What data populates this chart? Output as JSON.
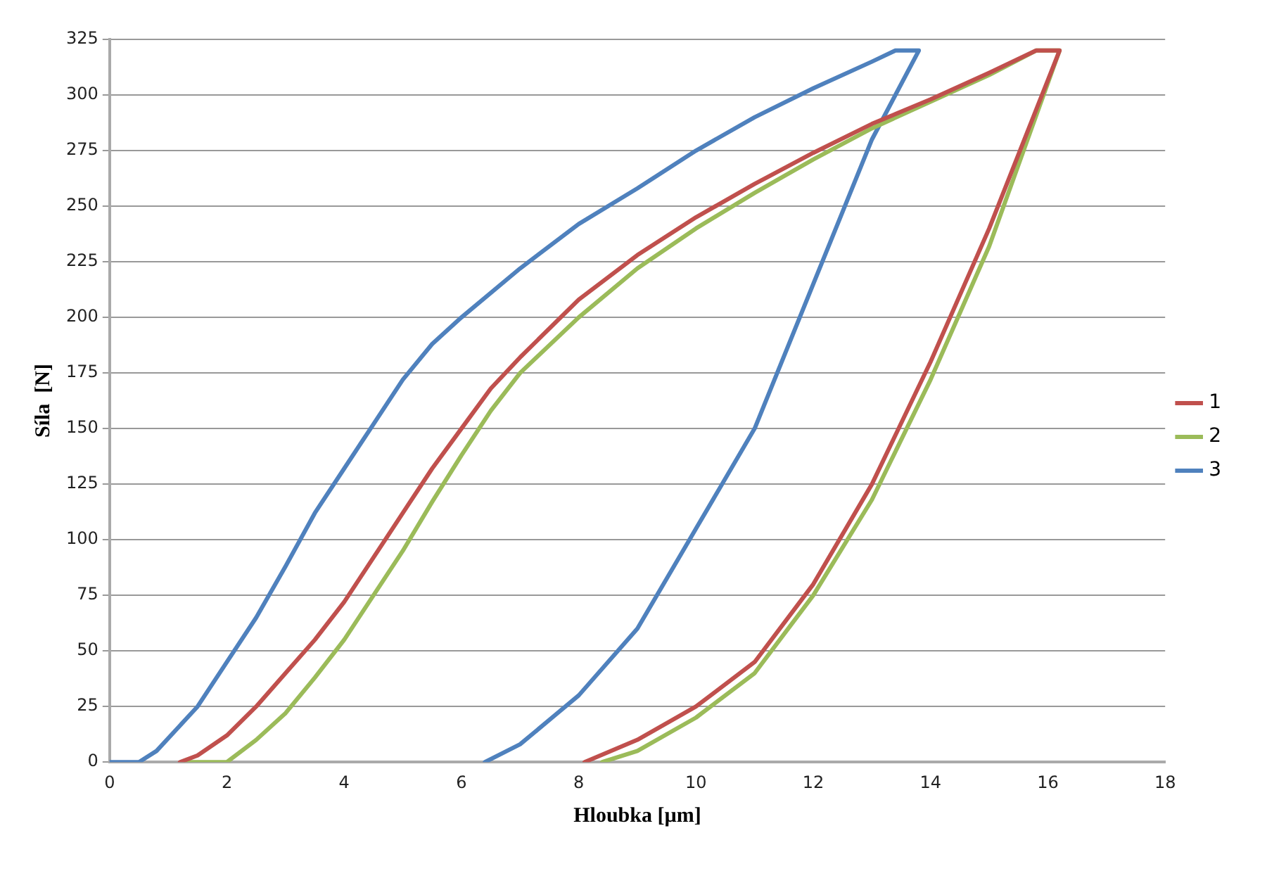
{
  "chart_data": {
    "type": "line",
    "xlabel": "Hloubka [µm]",
    "ylabel": "Síla  [N]",
    "xlim": [
      0,
      18
    ],
    "xticks": [
      0,
      2,
      4,
      6,
      8,
      10,
      12,
      14,
      16,
      18
    ],
    "ylim": [
      0,
      325
    ],
    "yticks": [
      0,
      25,
      50,
      75,
      100,
      125,
      150,
      175,
      200,
      225,
      250,
      275,
      300,
      325
    ],
    "grid": "y",
    "legend": "right",
    "marker": "none",
    "line_style": "solid",
    "series": [
      {
        "name": "1",
        "color": "#c0504d",
        "x": [
          1.2,
          1.5,
          2,
          2.5,
          3,
          3.5,
          4,
          4.5,
          5,
          5.5,
          6,
          6.5,
          7,
          8,
          9,
          10,
          11,
          12,
          13,
          14,
          15,
          15.8,
          16.2,
          15,
          14,
          13,
          12,
          11,
          10,
          9,
          8.1
        ],
        "values": [
          0,
          3,
          12,
          25,
          40,
          55,
          72,
          92,
          112,
          132,
          150,
          168,
          182,
          208,
          228,
          245,
          260,
          274,
          287,
          298,
          310,
          320,
          320,
          240,
          180,
          125,
          80,
          45,
          25,
          10,
          0
        ]
      },
      {
        "name": "2",
        "color": "#9bbb59",
        "x": [
          1.3,
          2,
          2.5,
          3,
          3.5,
          4,
          4.5,
          5,
          5.5,
          6,
          6.5,
          7,
          8,
          9,
          10,
          11,
          12,
          13,
          14,
          15,
          15.8,
          16.2,
          15,
          14,
          13,
          12,
          11,
          10,
          9,
          8.4
        ],
        "values": [
          0,
          0,
          10,
          22,
          38,
          55,
          75,
          95,
          117,
          138,
          158,
          175,
          200,
          222,
          240,
          256,
          271,
          285,
          297,
          309,
          320,
          320,
          232,
          172,
          118,
          75,
          40,
          20,
          5,
          0
        ]
      },
      {
        "name": "3",
        "color": "#4f81bd",
        "x": [
          0,
          0.5,
          0.8,
          1.5,
          2,
          2.5,
          3,
          3.5,
          4,
          4.5,
          5,
          5.5,
          6,
          7,
          8,
          9,
          10,
          11,
          12,
          13,
          13.4,
          13.8,
          13,
          12,
          11,
          10,
          9,
          8,
          7,
          6.4
        ],
        "values": [
          0,
          0,
          5,
          25,
          45,
          65,
          88,
          112,
          132,
          152,
          172,
          188,
          200,
          222,
          242,
          258,
          275,
          290,
          303,
          315,
          320,
          320,
          280,
          215,
          150,
          105,
          60,
          30,
          8,
          0
        ]
      }
    ]
  }
}
